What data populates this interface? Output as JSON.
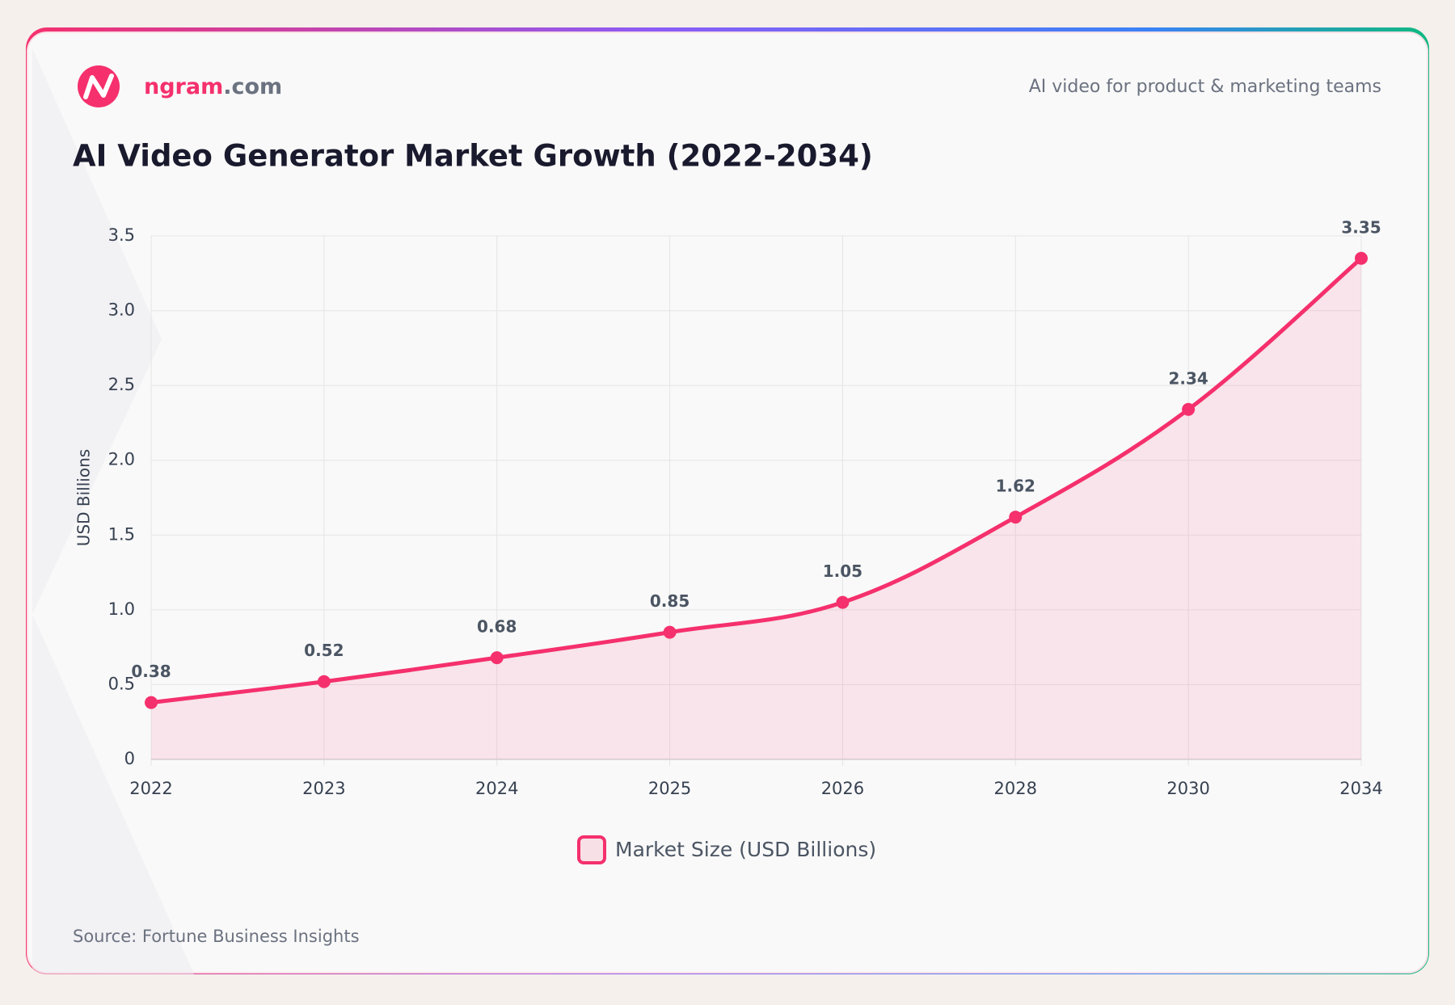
{
  "brand": {
    "name": "ngram",
    "domain": ".com",
    "tagline": "AI video for product & marketing teams"
  },
  "chart_data": {
    "type": "line",
    "title": "AI Video Generator Market Growth (2022-2034)",
    "y_label": "USD Billions",
    "categories": [
      "2022",
      "2023",
      "2024",
      "2025",
      "2026",
      "2028",
      "2030",
      "2034"
    ],
    "series": [
      {
        "name": "Market Size (USD Billions)",
        "color": "#f5306d",
        "values": [
          0.38,
          0.52,
          0.68,
          0.85,
          1.05,
          1.62,
          2.34,
          3.35
        ]
      }
    ],
    "ylim": [
      0,
      3.5
    ],
    "yticks": [
      0,
      0.5,
      {
        "value": 1,
        "label": "1.0"
      },
      1.5,
      {
        "value": 2,
        "label": "2.0"
      },
      2.5,
      {
        "value": 3,
        "label": "3.0"
      },
      3.5
    ],
    "grid": true,
    "legend": "bottom",
    "source": "Source: Fortune Business Insights"
  }
}
